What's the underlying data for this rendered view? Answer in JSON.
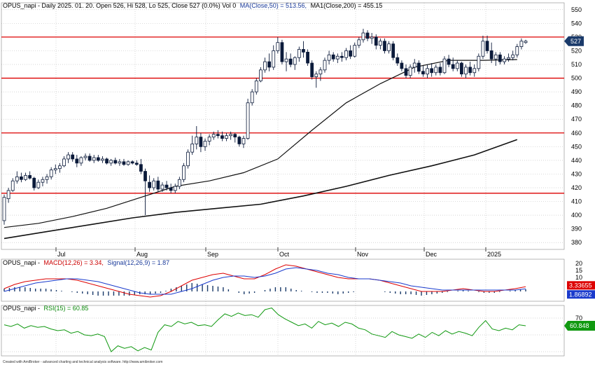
{
  "header": {
    "price": [
      {
        "text": "OPUS_napi - Daily 2025. 01. 20. Open 526, Hi 528, Lo 525, Close 527 (0.0%) Vol 0",
        "color": "#000000"
      },
      {
        "text": "MA(Close,50) = 513.56,",
        "color": "#1a3a9a"
      },
      {
        "text": "MA1(Close,200) = 455.15",
        "color": "#000000"
      }
    ],
    "macd": [
      {
        "text": "OPUS_napi -",
        "color": "#000000"
      },
      {
        "text": "MACD(12,26) = 3.34,",
        "color": "#cc0000"
      },
      {
        "text": "Signal(12,26,9) = 1.87",
        "color": "#1a3a9a"
      }
    ],
    "rsi": [
      {
        "text": "OPUS_napi -",
        "color": "#000000"
      },
      {
        "text": "RSI(15) = 60.85",
        "color": "#0a8a0a"
      }
    ]
  },
  "footer": "Created with AmiBroker - advanced charting and technical analysis software. http://www.amibroker.com",
  "colors": {
    "up": "#ffffff",
    "down": "#0b1a3a",
    "ma50": "#111111",
    "ma200": "#111111",
    "hline": "#dd0000",
    "macd": "#dd0000",
    "signal": "#1a3acc",
    "rsi": "#119911",
    "grid": "#c8c8c8",
    "price_badge": "#1a3a6a",
    "macd_badge": "#dd0000",
    "signal_badge": "#1a3acc",
    "rsi_badge": "#119911"
  },
  "badges": {
    "price": "527",
    "macd": "3.33655",
    "signal": "1.86892",
    "rsi": "60.848"
  },
  "chart_data": [
    {
      "type": "candlestick",
      "title": "OPUS_napi - Daily",
      "x_labels": [
        "Jul",
        "Aug",
        "Sep",
        "Oct",
        "Nov",
        "Dec",
        "2025"
      ],
      "ylim": [
        375,
        555
      ],
      "y_ticks": [
        380,
        390,
        400,
        410,
        420,
        430,
        440,
        450,
        460,
        470,
        480,
        490,
        500,
        510,
        520,
        530,
        540,
        550
      ],
      "horizontal_lines": [
        530,
        500,
        460,
        416
      ],
      "grid": true,
      "candles": [
        [
          396,
          415,
          393,
          413
        ],
        [
          412,
          420,
          409,
          418
        ],
        [
          418,
          427,
          417,
          425
        ],
        [
          425,
          432,
          423,
          428
        ],
        [
          428,
          431,
          424,
          426
        ],
        [
          426,
          431,
          425,
          429
        ],
        [
          429,
          432,
          426,
          427
        ],
        [
          427,
          428,
          418,
          420
        ],
        [
          420,
          426,
          419,
          424
        ],
        [
          424,
          428,
          421,
          426
        ],
        [
          426,
          430,
          423,
          428
        ],
        [
          428,
          435,
          426,
          433
        ],
        [
          433,
          437,
          430,
          434
        ],
        [
          434,
          438,
          431,
          436
        ],
        [
          436,
          443,
          435,
          441
        ],
        [
          441,
          446,
          438,
          444
        ],
        [
          444,
          446,
          439,
          441
        ],
        [
          441,
          444,
          435,
          438
        ],
        [
          438,
          443,
          436,
          442
        ],
        [
          442,
          445,
          440,
          443
        ],
        [
          443,
          445,
          439,
          440
        ],
        [
          440,
          444,
          438,
          442
        ],
        [
          442,
          444,
          439,
          440
        ],
        [
          440,
          443,
          438,
          441
        ],
        [
          441,
          442,
          437,
          438
        ],
        [
          438,
          441,
          436,
          440
        ],
        [
          440,
          442,
          437,
          438
        ],
        [
          438,
          441,
          436,
          439
        ],
        [
          439,
          441,
          436,
          437
        ],
        [
          437,
          440,
          436,
          439
        ],
        [
          439,
          440,
          437,
          438
        ],
        [
          438,
          440,
          436,
          437
        ],
        [
          437,
          441,
          430,
          432
        ],
        [
          432,
          434,
          400,
          425
        ],
        [
          424,
          429,
          417,
          420
        ],
        [
          420,
          427,
          418,
          425
        ],
        [
          425,
          428,
          417,
          419
        ],
        [
          419,
          424,
          417,
          422
        ],
        [
          422,
          425,
          418,
          420
        ],
        [
          420,
          423,
          416,
          418
        ],
        [
          418,
          423,
          416,
          421
        ],
        [
          421,
          428,
          419,
          426
        ],
        [
          426,
          438,
          424,
          436
        ],
        [
          436,
          448,
          434,
          446
        ],
        [
          446,
          458,
          444,
          452
        ],
        [
          452,
          465,
          448,
          457
        ],
        [
          457,
          460,
          446,
          450
        ],
        [
          450,
          456,
          447,
          454
        ],
        [
          454,
          459,
          451,
          457
        ],
        [
          457,
          461,
          455,
          459
        ],
        [
          459,
          462,
          456,
          458
        ],
        [
          458,
          461,
          454,
          456
        ],
        [
          456,
          460,
          454,
          458
        ],
        [
          458,
          461,
          455,
          459
        ],
        [
          459,
          460,
          453,
          457
        ],
        [
          457,
          458,
          450,
          452
        ],
        [
          452,
          458,
          449,
          456
        ],
        [
          456,
          485,
          455,
          482
        ],
        [
          482,
          492,
          480,
          490
        ],
        [
          490,
          500,
          488,
          498
        ],
        [
          498,
          508,
          497,
          506
        ],
        [
          506,
          515,
          504,
          512
        ],
        [
          512,
          518,
          505,
          508
        ],
        [
          508,
          524,
          506,
          520
        ],
        [
          520,
          530,
          518,
          526
        ],
        [
          526,
          528,
          510,
          512
        ],
        [
          512,
          519,
          505,
          514
        ],
        [
          514,
          518,
          508,
          510
        ],
        [
          510,
          516,
          506,
          515
        ],
        [
          515,
          523,
          512,
          521
        ],
        [
          521,
          527,
          515,
          519
        ],
        [
          519,
          521,
          509,
          511
        ],
        [
          511,
          513,
          499,
          501
        ],
        [
          501,
          505,
          493,
          503
        ],
        [
          503,
          508,
          498,
          506
        ],
        [
          506,
          515,
          504,
          513
        ],
        [
          513,
          520,
          510,
          517
        ],
        [
          517,
          519,
          512,
          514
        ],
        [
          514,
          518,
          511,
          516
        ],
        [
          516,
          519,
          512,
          515
        ],
        [
          515,
          522,
          513,
          520
        ],
        [
          520,
          524,
          514,
          516
        ],
        [
          516,
          526,
          515,
          524
        ],
        [
          524,
          530,
          522,
          528
        ],
        [
          528,
          536,
          526,
          533
        ],
        [
          533,
          535,
          527,
          529
        ],
        [
          529,
          533,
          525,
          530
        ],
        [
          530,
          532,
          521,
          524
        ],
        [
          524,
          529,
          521,
          527
        ],
        [
          527,
          529,
          518,
          520
        ],
        [
          520,
          527,
          518,
          525
        ],
        [
          525,
          527,
          513,
          515
        ],
        [
          515,
          518,
          509,
          511
        ],
        [
          511,
          513,
          505,
          507
        ],
        [
          507,
          510,
          500,
          502
        ],
        [
          502,
          510,
          500,
          508
        ],
        [
          508,
          514,
          504,
          511
        ],
        [
          511,
          513,
          503,
          505
        ],
        [
          505,
          509,
          501,
          503
        ],
        [
          503,
          510,
          500,
          507
        ],
        [
          507,
          511,
          501,
          504
        ],
        [
          504,
          510,
          502,
          508
        ],
        [
          508,
          511,
          502,
          504
        ],
        [
          504,
          516,
          503,
          514
        ],
        [
          514,
          517,
          508,
          510
        ],
        [
          510,
          515,
          505,
          507
        ],
        [
          507,
          513,
          505,
          511
        ],
        [
          511,
          512,
          501,
          503
        ],
        [
          503,
          510,
          500,
          508
        ],
        [
          508,
          512,
          502,
          504
        ],
        [
          504,
          510,
          501,
          507
        ],
        [
          507,
          518,
          505,
          516
        ],
        [
          516,
          531,
          514,
          527
        ],
        [
          527,
          531,
          518,
          520
        ],
        [
          520,
          526,
          511,
          514
        ],
        [
          514,
          519,
          509,
          517
        ],
        [
          517,
          519,
          510,
          512
        ],
        [
          512,
          516,
          510,
          514
        ],
        [
          514,
          518,
          512,
          515
        ],
        [
          515,
          520,
          513,
          517
        ],
        [
          517,
          525,
          515,
          523
        ],
        [
          523,
          529,
          521,
          527
        ],
        [
          526,
          528,
          525,
          527
        ]
      ],
      "ma50": [
        null,
        null,
        null,
        null,
        null,
        null,
        null,
        null,
        null,
        null,
        null,
        null,
        null,
        null,
        null,
        null,
        null,
        null,
        null,
        null,
        null,
        null,
        null,
        null,
        null,
        null,
        null,
        null,
        null,
        null,
        null,
        null,
        null,
        null,
        null,
        null,
        null,
        null,
        null,
        null,
        null,
        null,
        null,
        null,
        null,
        null,
        null,
        null,
        null,
        null,
        null,
        null,
        null,
        null,
        null,
        null,
        null,
        null,
        null,
        null,
        null,
        null,
        null,
        null,
        null,
        null,
        null,
        null,
        null,
        null,
        null,
        null,
        null,
        null,
        null,
        null,
        null,
        null,
        null,
        null,
        null,
        null,
        null,
        null,
        null,
        null,
        null,
        null,
        null,
        null,
        null,
        null,
        null,
        null,
        null,
        null,
        null,
        null,
        null,
        null,
        null,
        null,
        null,
        null,
        null,
        null,
        null,
        null,
        null,
        null,
        null,
        null,
        null,
        null,
        null,
        null,
        null,
        null,
        null,
        null
      ],
      "ma50_points": [
        [
          0,
          391
        ],
        [
          8,
          394
        ],
        [
          16,
          399
        ],
        [
          24,
          405
        ],
        [
          32,
          413
        ],
        [
          40,
          421
        ],
        [
          48,
          425
        ],
        [
          56,
          431
        ],
        [
          64,
          441
        ],
        [
          72,
          462
        ],
        [
          80,
          482
        ],
        [
          88,
          496
        ],
        [
          96,
          508
        ],
        [
          104,
          513
        ],
        [
          112,
          513
        ],
        [
          120,
          513.56
        ]
      ],
      "ma200_points": [
        [
          0,
          383
        ],
        [
          10,
          388
        ],
        [
          20,
          393
        ],
        [
          30,
          398
        ],
        [
          40,
          402
        ],
        [
          50,
          405
        ],
        [
          60,
          408
        ],
        [
          70,
          414
        ],
        [
          80,
          421
        ],
        [
          90,
          429
        ],
        [
          100,
          436
        ],
        [
          110,
          444
        ],
        [
          120,
          455.15
        ]
      ]
    },
    {
      "type": "line",
      "title": "MACD(12,26) / Signal(12,26,9)",
      "ylim": [
        -7,
        23
      ],
      "y_ticks": [
        5,
        10,
        15,
        20
      ],
      "series": [
        {
          "name": "MACD(12,26)",
          "values": [
            2,
            5,
            7,
            8,
            9,
            9,
            9,
            8,
            6,
            4,
            2,
            0,
            -2,
            -3,
            -4,
            -3,
            0,
            4,
            8,
            10,
            12,
            13,
            11,
            9,
            9,
            12,
            16,
            19,
            18,
            16,
            14,
            12,
            10,
            9,
            9,
            9,
            8,
            6,
            4,
            2,
            0,
            0,
            0,
            1,
            2,
            1,
            0,
            0,
            1,
            2,
            3.34
          ]
        },
        {
          "name": "Signal(12,26,9)",
          "values": [
            0,
            2,
            4,
            6,
            7,
            8,
            9,
            9,
            8,
            7,
            5,
            3,
            1,
            -1,
            -2,
            -2,
            -2,
            0,
            2,
            5,
            8,
            10,
            11,
            11,
            10,
            11,
            13,
            16,
            17,
            16,
            15,
            13,
            12,
            10,
            9,
            9,
            8,
            7,
            6,
            4,
            3,
            2,
            1,
            1,
            1,
            1,
            1,
            1,
            1,
            1,
            1.87
          ]
        }
      ],
      "histogram": [
        2,
        3,
        3,
        2,
        2,
        1,
        0,
        -1,
        -2,
        -3,
        -3,
        -3,
        -3,
        -2,
        -2,
        -1,
        2,
        4,
        6,
        5,
        4,
        3,
        0,
        -2,
        -1,
        1,
        3,
        3,
        1,
        0,
        -1,
        -1,
        -2,
        -1,
        0,
        0,
        0,
        -1,
        -2,
        -2,
        -3,
        -2,
        -1,
        0,
        1,
        0,
        -1,
        -1,
        0,
        1,
        1.5
      ]
    },
    {
      "type": "line",
      "title": "RSI(15)",
      "ylim": [
        25,
        85
      ],
      "y_ticks": [
        30,
        50,
        70
      ],
      "series": [
        {
          "name": "RSI(15)",
          "values": [
            62,
            60,
            63,
            58,
            61,
            59,
            60,
            57,
            55,
            56,
            52,
            54,
            50,
            49,
            51,
            48,
            30,
            37,
            34,
            36,
            31,
            35,
            32,
            53,
            62,
            60,
            66,
            63,
            65,
            61,
            62,
            60,
            68,
            75,
            72,
            76,
            73,
            74,
            71,
            80,
            82,
            74,
            69,
            65,
            61,
            63,
            58,
            66,
            62,
            64,
            60,
            65,
            63,
            58,
            56,
            51,
            49,
            47,
            54,
            50,
            48,
            46,
            51,
            47,
            53,
            49,
            55,
            51,
            54,
            52,
            49,
            59,
            67,
            57,
            55,
            58,
            56,
            62,
            60.85
          ]
        }
      ]
    }
  ]
}
